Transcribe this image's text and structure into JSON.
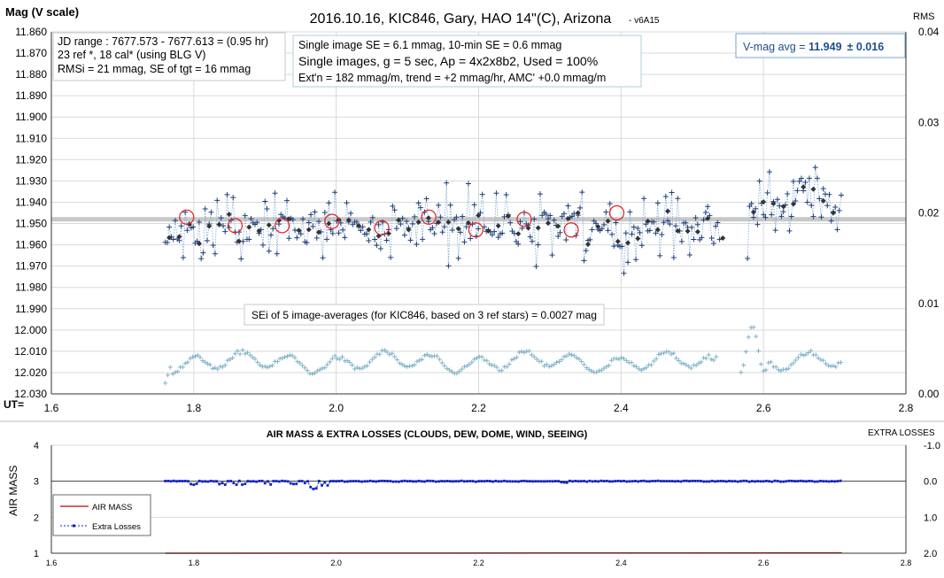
{
  "chart_data": [
    {
      "type": "scatter",
      "title": "2016.10.16, KIC846, Gary, HAO 14\"(C), Arizona",
      "title_suffix": "- v6A15",
      "ylabel": "Mag (V scale)",
      "y2label": "RMS",
      "xlabel": "UT=",
      "xlim": [
        1.6,
        2.8
      ],
      "ylim": [
        11.86,
        12.03
      ],
      "y_reversed": true,
      "y2lim": [
        0.0,
        0.04
      ],
      "x_ticks": [
        "1.6",
        "1.8",
        "2.0",
        "2.2",
        "2.4",
        "2.6",
        "2.8"
      ],
      "y_ticks": [
        "11.860",
        "11.870",
        "11.880",
        "11.890",
        "11.900",
        "11.910",
        "11.920",
        "11.930",
        "11.940",
        "11.950",
        "11.960",
        "11.970",
        "11.980",
        "11.990",
        "12.000",
        "12.010",
        "12.020",
        "12.030"
      ],
      "y2_ticks": [
        "0.04",
        "0.03",
        "0.02",
        "0.01",
        "0.00"
      ],
      "grid": true,
      "avg_line_mag": 11.948,
      "info_boxes": {
        "jd": [
          "JD range : 7677.573 - 7677.613 = (0.95 hr)",
          "23 ref *, 18 cal* (using BLG V)",
          "RMSi = 21 mmag, SE of tgt = 16 mmag"
        ],
        "se_line1": "Single image SE = 6.1 mmag, 10-min SE = 0.6 mmag",
        "se_line2": "Single images, g = 5 sec, Ap = 4x2x8b2, Used = 100%",
        "se_line3": "Ext'n = 182 mmag/m, trend = +2 mmag/hr, AMC' +0.0 mmag/m",
        "vmag_prefix": "V-mag avg = ",
        "vmag_value": "11.949",
        "vmag_err": "± 0.016",
        "sei": "SEi of 5 image-averages (for KIC846, based on 3 ref stars) = 0.0027 mag"
      },
      "series": [
        {
          "role": "single-image magnitudes",
          "color": "#1f3f7a",
          "x_range": [
            1.76,
            2.71
          ],
          "gap": [
            2.54,
            2.575
          ],
          "baseline": 11.952,
          "scatter_sd": 0.006
        },
        {
          "role": "image averages",
          "color": "#333333"
        },
        {
          "role": "10-min averages",
          "color": "#e02020",
          "x": [
            1.79,
            1.858,
            1.924,
            1.994,
            2.064,
            2.13,
            2.196,
            2.264,
            2.33,
            2.394
          ],
          "y": [
            11.947,
            11.951,
            11.951,
            11.949,
            11.952,
            11.947,
            11.953,
            11.948,
            11.953,
            11.945
          ]
        },
        {
          "role": "RMS",
          "color": "#7fb3c8",
          "axis": "y2",
          "x_range": [
            1.76,
            2.71
          ]
        }
      ]
    },
    {
      "type": "line",
      "title": "AIR MASS & EXTRA LOSSES (CLOUDS, DEW, DOME, WIND, SEEING)",
      "ylabel": "AIR MASS",
      "y2label": "EXTRA LOSSES",
      "xlim": [
        1.6,
        2.8
      ],
      "ylim": [
        1,
        4
      ],
      "y2lim": [
        -1.0,
        2.0
      ],
      "y2_reversed": true,
      "x_ticks": [
        "1.6",
        "1.8",
        "2.0",
        "2.2",
        "2.4",
        "2.6",
        "2.8"
      ],
      "y_ticks": [
        "4",
        "3",
        "2",
        "1"
      ],
      "y2_ticks": [
        "-1.0",
        "0.0",
        "1.0",
        "2.0"
      ],
      "legend": {
        "placement": "bottom-left",
        "entries": [
          "AIR MASS",
          "Extra Losses"
        ]
      },
      "series": [
        {
          "name": "AIR MASS",
          "color": "#c00000",
          "x": [
            1.76,
            2.71
          ],
          "y": [
            1.0,
            1.01
          ]
        },
        {
          "name": "Extra Losses",
          "color": "#1020c0",
          "x_range": [
            1.76,
            2.71
          ],
          "baseline": 0.0,
          "dips": [
            [
              1.8,
              0.1
            ],
            [
              1.84,
              0.14
            ],
            [
              1.87,
              0.12
            ],
            [
              1.94,
              0.08
            ],
            [
              1.968,
              0.22
            ],
            [
              1.985,
              0.16
            ],
            [
              2.32,
              0.04
            ]
          ]
        }
      ]
    }
  ]
}
